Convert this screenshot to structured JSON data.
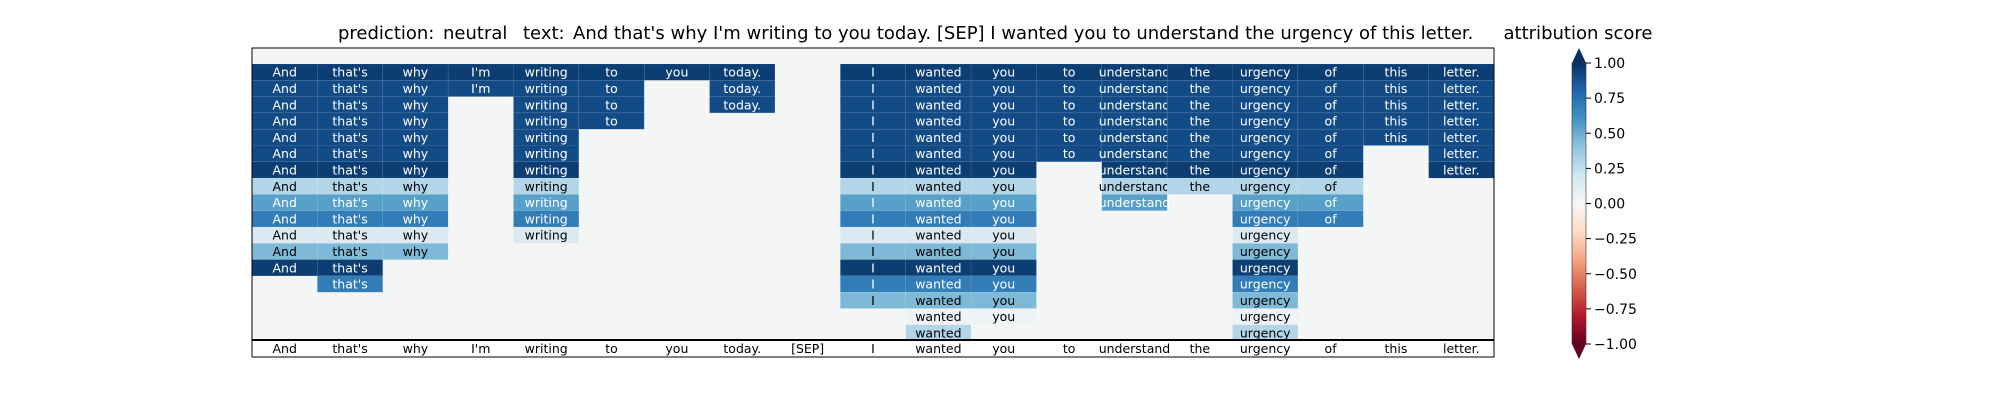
{
  "chart_data": {
    "type": "heatmap",
    "title": {
      "prediction_label": "prediction:",
      "prediction_value": "neutral",
      "text_label": "text:",
      "text_value": "And that's why I'm writing to you today. [SEP] I wanted you to understand the urgency of this letter."
    },
    "tokens": [
      "And",
      "that's",
      "why",
      "I'm",
      "writing",
      "to",
      "you",
      "today.",
      "[SEP]",
      "I",
      "wanted",
      "you",
      "to",
      "understand",
      "the",
      "urgency",
      "of",
      "this",
      "letter."
    ],
    "rows": [
      [
        0.95,
        0.95,
        0.95,
        0.95,
        0.95,
        0.95,
        0.95,
        0.95,
        null,
        0.95,
        0.95,
        0.95,
        0.95,
        0.95,
        0.95,
        0.95,
        0.95,
        0.95,
        0.95
      ],
      [
        0.9,
        0.9,
        0.9,
        0.9,
        0.9,
        0.9,
        null,
        0.9,
        null,
        0.9,
        0.9,
        0.9,
        0.9,
        0.9,
        0.9,
        0.9,
        0.9,
        0.9,
        0.9
      ],
      [
        0.9,
        0.9,
        0.9,
        null,
        0.9,
        0.9,
        null,
        0.9,
        null,
        0.9,
        0.9,
        0.9,
        0.9,
        0.9,
        0.9,
        0.9,
        0.9,
        0.9,
        0.9
      ],
      [
        0.9,
        0.9,
        0.9,
        null,
        0.9,
        0.9,
        null,
        null,
        null,
        0.9,
        0.9,
        0.9,
        0.9,
        0.9,
        0.9,
        0.9,
        0.9,
        0.9,
        0.9
      ],
      [
        0.9,
        0.9,
        0.9,
        null,
        0.9,
        null,
        null,
        null,
        null,
        0.9,
        0.9,
        0.9,
        0.9,
        0.9,
        0.9,
        0.9,
        0.9,
        0.9,
        0.9
      ],
      [
        0.9,
        0.9,
        0.9,
        null,
        0.9,
        null,
        null,
        null,
        null,
        0.9,
        0.9,
        0.9,
        0.9,
        0.9,
        0.9,
        0.9,
        0.9,
        null,
        0.9
      ],
      [
        0.95,
        0.95,
        0.95,
        null,
        0.95,
        null,
        null,
        null,
        null,
        0.95,
        0.95,
        0.95,
        null,
        0.95,
        0.95,
        0.95,
        0.95,
        null,
        0.95
      ],
      [
        0.3,
        0.3,
        0.3,
        null,
        0.3,
        null,
        null,
        null,
        null,
        0.3,
        0.3,
        0.3,
        null,
        0.3,
        0.3,
        0.3,
        0.3,
        null,
        null
      ],
      [
        0.55,
        0.55,
        0.55,
        null,
        0.55,
        null,
        null,
        null,
        null,
        0.55,
        0.55,
        0.55,
        null,
        0.55,
        null,
        0.55,
        0.55,
        null,
        null
      ],
      [
        0.7,
        0.7,
        0.7,
        null,
        0.7,
        null,
        null,
        null,
        null,
        0.7,
        0.7,
        0.7,
        null,
        null,
        null,
        0.7,
        0.7,
        null,
        null
      ],
      [
        0.15,
        0.15,
        0.15,
        null,
        0.15,
        null,
        null,
        null,
        null,
        0.15,
        0.15,
        0.15,
        null,
        null,
        null,
        0.15,
        null,
        null,
        null
      ],
      [
        0.45,
        0.45,
        0.45,
        null,
        null,
        null,
        null,
        null,
        null,
        0.45,
        0.45,
        0.45,
        null,
        null,
        null,
        0.45,
        null,
        null,
        null
      ],
      [
        0.95,
        0.95,
        null,
        null,
        null,
        null,
        null,
        null,
        null,
        0.95,
        0.95,
        0.95,
        null,
        null,
        null,
        0.95,
        null,
        null,
        null
      ],
      [
        null,
        0.7,
        null,
        null,
        null,
        null,
        null,
        null,
        null,
        0.7,
        0.7,
        0.7,
        null,
        null,
        null,
        0.7,
        null,
        null,
        null
      ],
      [
        null,
        null,
        null,
        null,
        null,
        null,
        null,
        null,
        null,
        0.45,
        0.45,
        0.45,
        null,
        null,
        null,
        0.45,
        null,
        null,
        null
      ],
      [
        null,
        null,
        null,
        null,
        null,
        null,
        null,
        null,
        null,
        null,
        0.05,
        0.05,
        null,
        null,
        null,
        0.05,
        null,
        null,
        null
      ],
      [
        null,
        null,
        null,
        null,
        null,
        null,
        null,
        null,
        null,
        null,
        0.3,
        null,
        null,
        null,
        null,
        0.3,
        null,
        null,
        null
      ]
    ],
    "colorbar": {
      "label": "attribution score",
      "range": [
        -1.0,
        1.0
      ],
      "ticks": [
        "1.00",
        "0.75",
        "0.50",
        "0.25",
        "0.00",
        "−0.25",
        "−0.50",
        "−0.75",
        "−1.00"
      ],
      "tick_values": [
        1.0,
        0.75,
        0.5,
        0.25,
        0.0,
        -0.25,
        -0.5,
        -0.75,
        -1.0
      ],
      "colormap": "RdBu",
      "stops": [
        "#67001f",
        "#b2182b",
        "#d6604d",
        "#f4a582",
        "#fddbc7",
        "#f7f7f7",
        "#d1e5f0",
        "#92c5de",
        "#4393c3",
        "#2166ac",
        "#053061"
      ]
    },
    "background_color": "#f4f6f6"
  }
}
